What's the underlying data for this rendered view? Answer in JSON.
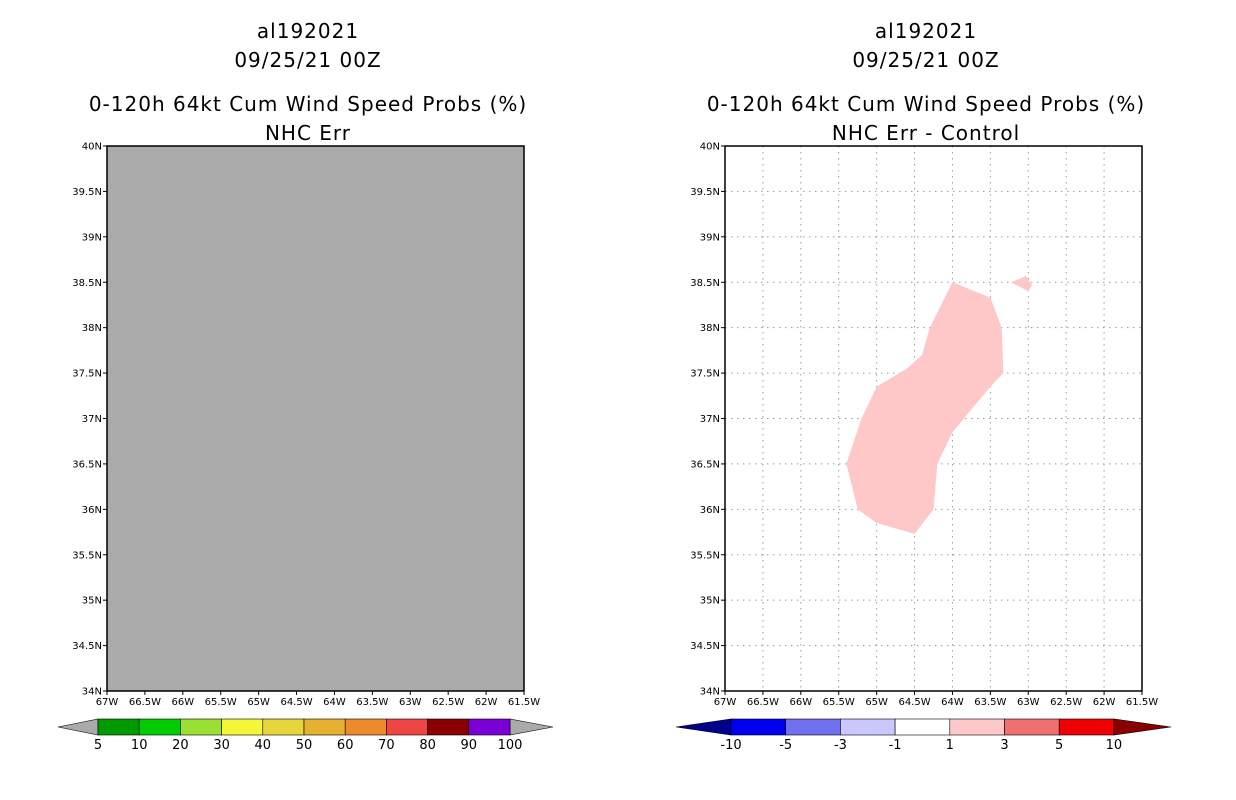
{
  "chart_data": [
    {
      "type": "map",
      "title_lines": [
        "al192021",
        "09/25/21 00Z",
        "0-120h 64kt Cum Wind Speed Probs (%)",
        "NHC Err"
      ],
      "xlabel": "",
      "ylabel": "",
      "xlim": [
        -67,
        -61.5
      ],
      "ylim": [
        34,
        40
      ],
      "x_ticks": [
        -67,
        -66.5,
        -66,
        -65.5,
        -65,
        -64.5,
        -64,
        -63.5,
        -63,
        -62.5,
        -62,
        -61.5
      ],
      "x_tick_labels": [
        "67W",
        "66.5W",
        "66W",
        "65.5W",
        "65W",
        "64.5W",
        "64W",
        "63.5W",
        "63W",
        "62.5W",
        "62W",
        "61.5W"
      ],
      "y_ticks": [
        34,
        34.5,
        35,
        35.5,
        36,
        36.5,
        37,
        37.5,
        38,
        38.5,
        39,
        39.5,
        40
      ],
      "y_tick_labels": [
        "34N",
        "34.5N",
        "35N",
        "35.5N",
        "36N",
        "36.5N",
        "37N",
        "37.5N",
        "38N",
        "38.5N",
        "39N",
        "39.5N",
        "40N"
      ],
      "grid": false,
      "background_fill": "#aaaaaa",
      "colorbar": {
        "labels": [
          "5",
          "10",
          "20",
          "30",
          "40",
          "50",
          "60",
          "70",
          "80",
          "90",
          "100"
        ],
        "colors": [
          "#009900",
          "#00cc00",
          "#99e033",
          "#f5f53a",
          "#e6d63c",
          "#e6b030",
          "#ee8a2e",
          "#f04545",
          "#8a0000",
          "#7a00d6"
        ],
        "end_colors": [
          "#aaaaaa",
          "#aaaaaa"
        ]
      },
      "regions": []
    },
    {
      "type": "map",
      "title_lines": [
        "al192021",
        "09/25/21 00Z",
        "0-120h 64kt Cum Wind Speed Probs (%)",
        "NHC Err - Control"
      ],
      "xlabel": "",
      "ylabel": "",
      "xlim": [
        -67,
        -61.5
      ],
      "ylim": [
        34,
        40
      ],
      "x_ticks": [
        -67,
        -66.5,
        -66,
        -65.5,
        -65,
        -64.5,
        -64,
        -63.5,
        -63,
        -62.5,
        -62,
        -61.5
      ],
      "x_tick_labels": [
        "67W",
        "66.5W",
        "66W",
        "65.5W",
        "65W",
        "64.5W",
        "64W",
        "63.5W",
        "63W",
        "62.5W",
        "62W",
        "61.5W"
      ],
      "y_ticks": [
        34,
        34.5,
        35,
        35.5,
        36,
        36.5,
        37,
        37.5,
        38,
        38.5,
        39,
        39.5,
        40
      ],
      "y_tick_labels": [
        "34N",
        "34.5N",
        "35N",
        "35.5N",
        "36N",
        "36.5N",
        "37N",
        "37.5N",
        "38N",
        "38.5N",
        "39N",
        "39.5N",
        "40N"
      ],
      "grid": true,
      "background_fill": "#ffffff",
      "colorbar": {
        "labels": [
          "-10",
          "-5",
          "-3",
          "-1",
          "1",
          "3",
          "5",
          "10"
        ],
        "colors": [
          "#0000f0",
          "#7070f0",
          "#c8c8ff",
          "#ffffff",
          "#ffc8c8",
          "#f07070",
          "#f00000"
        ],
        "end_colors": [
          "#00008a",
          "#8a0000"
        ]
      },
      "regions": [
        {
          "range": "1 to 3",
          "color": "#ffc8c8",
          "points": [
            [
              -64.0,
              38.5
            ],
            [
              -63.5,
              38.33
            ],
            [
              -63.35,
              38.0
            ],
            [
              -63.33,
              37.5
            ],
            [
              -63.5,
              37.35
            ],
            [
              -64.0,
              36.85
            ],
            [
              -64.2,
              36.5
            ],
            [
              -64.25,
              36.0
            ],
            [
              -64.5,
              35.73
            ],
            [
              -65.0,
              35.85
            ],
            [
              -65.25,
              36.0
            ],
            [
              -65.4,
              36.5
            ],
            [
              -65.2,
              37.0
            ],
            [
              -65.0,
              37.35
            ],
            [
              -64.6,
              37.55
            ],
            [
              -64.4,
              37.7
            ],
            [
              -64.3,
              38.0
            ]
          ]
        },
        {
          "range": "1 to 3",
          "color": "#ffc8c8",
          "points": [
            [
              -63.23,
              38.5
            ],
            [
              -63.03,
              38.57
            ],
            [
              -62.95,
              38.47
            ],
            [
              -63.0,
              38.4
            ]
          ]
        }
      ]
    }
  ]
}
